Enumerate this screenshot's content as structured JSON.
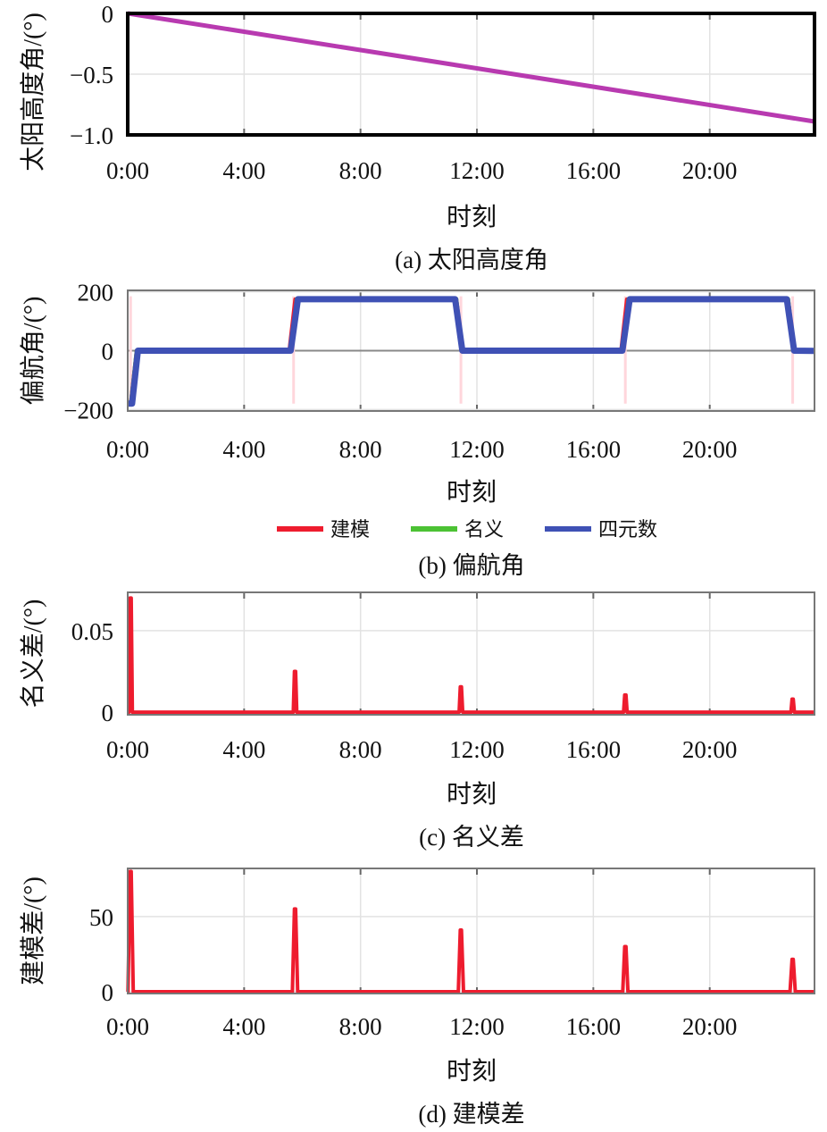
{
  "chart_data": [
    {
      "type": "line",
      "caption": "(a) 太阳高度角",
      "xlabel": "时刻",
      "ylabel": "太阳高度角/(°)",
      "xlim": [
        0,
        23.6
      ],
      "ylim": [
        -1.0,
        0
      ],
      "xticks": [
        0,
        4,
        8,
        12,
        16,
        20
      ],
      "xtick_labels": [
        "0:00",
        "4:00",
        "8:00",
        "12:00",
        "16:00",
        "20:00"
      ],
      "yticks": [
        0,
        -0.5,
        -1.0
      ],
      "ytick_labels": [
        "0",
        "−0.5",
        "−1.0"
      ],
      "grid": true,
      "series": [
        {
          "name": "太阳高度角",
          "color": "#b83ab0",
          "points": [
            [
              0,
              0
            ],
            [
              23.6,
              -0.89
            ]
          ]
        }
      ]
    },
    {
      "type": "line",
      "caption": "(b) 偏航角",
      "xlabel": "时刻",
      "ylabel": "偏航角/(°)",
      "xlim": [
        0,
        23.6
      ],
      "ylim": [
        -205,
        205
      ],
      "xticks": [
        0,
        4,
        8,
        12,
        16,
        20
      ],
      "xtick_labels": [
        "0:00",
        "4:00",
        "8:00",
        "12:00",
        "16:00",
        "20:00"
      ],
      "yticks": [
        200,
        0,
        -200
      ],
      "ytick_labels": [
        "200",
        "0",
        "−200"
      ],
      "grid": true,
      "legend": "bottom",
      "series": [
        {
          "name": "建模",
          "color": "#ee1c2e",
          "points": [
            [
              0,
              -175
            ],
            [
              0.1,
              -178
            ],
            [
              0.3,
              0
            ],
            [
              5.55,
              0
            ],
            [
              5.75,
              175
            ],
            [
              11.3,
              175
            ],
            [
              11.5,
              0
            ],
            [
              16.95,
              0
            ],
            [
              17.15,
              175
            ],
            [
              22.7,
              175
            ],
            [
              22.9,
              0
            ],
            [
              23.6,
              0
            ]
          ]
        },
        {
          "name": "名义",
          "color": "#4cc234",
          "points": [
            [
              0,
              -180
            ],
            [
              0.1,
              -180
            ],
            [
              0.3,
              0
            ],
            [
              5.6,
              0
            ],
            [
              5.8,
              176
            ],
            [
              11.3,
              176
            ],
            [
              11.5,
              0
            ],
            [
              17.0,
              0
            ],
            [
              17.2,
              176
            ],
            [
              22.7,
              176
            ],
            [
              22.9,
              0
            ],
            [
              23.6,
              0
            ]
          ]
        },
        {
          "name": "四元数",
          "color": "#3f51b5",
          "points": [
            [
              0,
              -180
            ],
            [
              0.15,
              -180
            ],
            [
              0.35,
              0
            ],
            [
              5.6,
              0
            ],
            [
              5.85,
              175
            ],
            [
              11.25,
              175
            ],
            [
              11.5,
              0
            ],
            [
              17.0,
              0
            ],
            [
              17.25,
              175
            ],
            [
              22.65,
              175
            ],
            [
              22.9,
              0
            ],
            [
              23.6,
              -1
            ]
          ]
        }
      ]
    },
    {
      "type": "line",
      "caption": "(c) 名义差",
      "xlabel": "时刻",
      "ylabel": "名义差/(°)",
      "xlim": [
        0,
        23.6
      ],
      "ylim": [
        -0.0016,
        0.0735
      ],
      "xticks": [
        0,
        4,
        8,
        12,
        16,
        20
      ],
      "xtick_labels": [
        "0:00",
        "4:00",
        "8:00",
        "12:00",
        "16:00",
        "20:00"
      ],
      "yticks": [
        0.05,
        0
      ],
      "ytick_labels": [
        "0.05",
        "0"
      ],
      "grid": true,
      "series": [
        {
          "name": "名义差",
          "color": "#ee1c2e",
          "baseline": 0,
          "peaks": [
            [
              0.1,
              0.07
            ],
            [
              5.75,
              0.025
            ],
            [
              11.45,
              0.0155
            ],
            [
              17.1,
              0.0105
            ],
            [
              22.85,
              0.008
            ]
          ]
        }
      ]
    },
    {
      "type": "line",
      "caption": "(d) 建模差",
      "xlabel": "时刻",
      "ylabel": "建模差/(°)",
      "xlim": [
        0,
        23.6
      ],
      "ylim": [
        -1.2,
        82
      ],
      "xticks": [
        0,
        4,
        8,
        12,
        16,
        20
      ],
      "xtick_labels": [
        "0:00",
        "4:00",
        "8:00",
        "12:00",
        "16:00",
        "20:00"
      ],
      "yticks": [
        50,
        0
      ],
      "ytick_labels": [
        "50",
        "0"
      ],
      "grid": true,
      "series": [
        {
          "name": "建模差",
          "color": "#ee1c2e",
          "baseline": 0,
          "peaks": [
            [
              0.1,
              80
            ],
            [
              5.75,
              55
            ],
            [
              11.45,
              41
            ],
            [
              17.1,
              30
            ],
            [
              22.85,
              21.5
            ]
          ]
        }
      ]
    }
  ]
}
